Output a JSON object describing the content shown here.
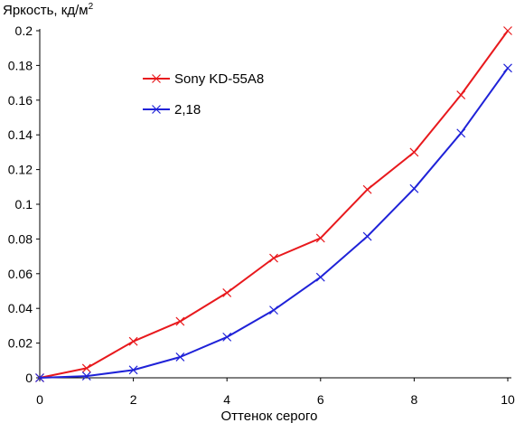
{
  "chart_data": {
    "type": "line",
    "title": "",
    "ylabel": "Яркость, кд/м",
    "ylabel_superscript": "2",
    "xlabel": "Оттенок серого",
    "xlim": [
      0,
      10
    ],
    "ylim": [
      0,
      0.2
    ],
    "x_ticks": [
      0,
      2,
      4,
      6,
      8,
      10
    ],
    "x_tick_labels": [
      "0",
      "2",
      "4",
      "6",
      "8",
      "10"
    ],
    "y_ticks": [
      0,
      0.02,
      0.04,
      0.06,
      0.08,
      0.1,
      0.12,
      0.14,
      0.16,
      0.18,
      0.2
    ],
    "y_tick_labels": [
      "0",
      "0.02",
      "0.04",
      "0.06",
      "0.08",
      "0.1",
      "0.12",
      "0.14",
      "0.16",
      "0.18",
      "0.2"
    ],
    "grid": false,
    "legend_position": "upper-left",
    "x": [
      0,
      1,
      2,
      3,
      4,
      5,
      6,
      7,
      8,
      9,
      10
    ],
    "series": [
      {
        "name": "Sony KD-55A8",
        "color": "#e8191d",
        "marker": "x",
        "values": [
          0,
          0.0055,
          0.021,
          0.0325,
          0.049,
          0.069,
          0.0805,
          0.1085,
          0.13,
          0.163,
          0.2
        ]
      },
      {
        "name": "2,18",
        "color": "#1f22d8",
        "marker": "x",
        "values": [
          0,
          0.001,
          0.0045,
          0.012,
          0.0235,
          0.039,
          0.058,
          0.0815,
          0.109,
          0.141,
          0.1785
        ]
      }
    ]
  }
}
